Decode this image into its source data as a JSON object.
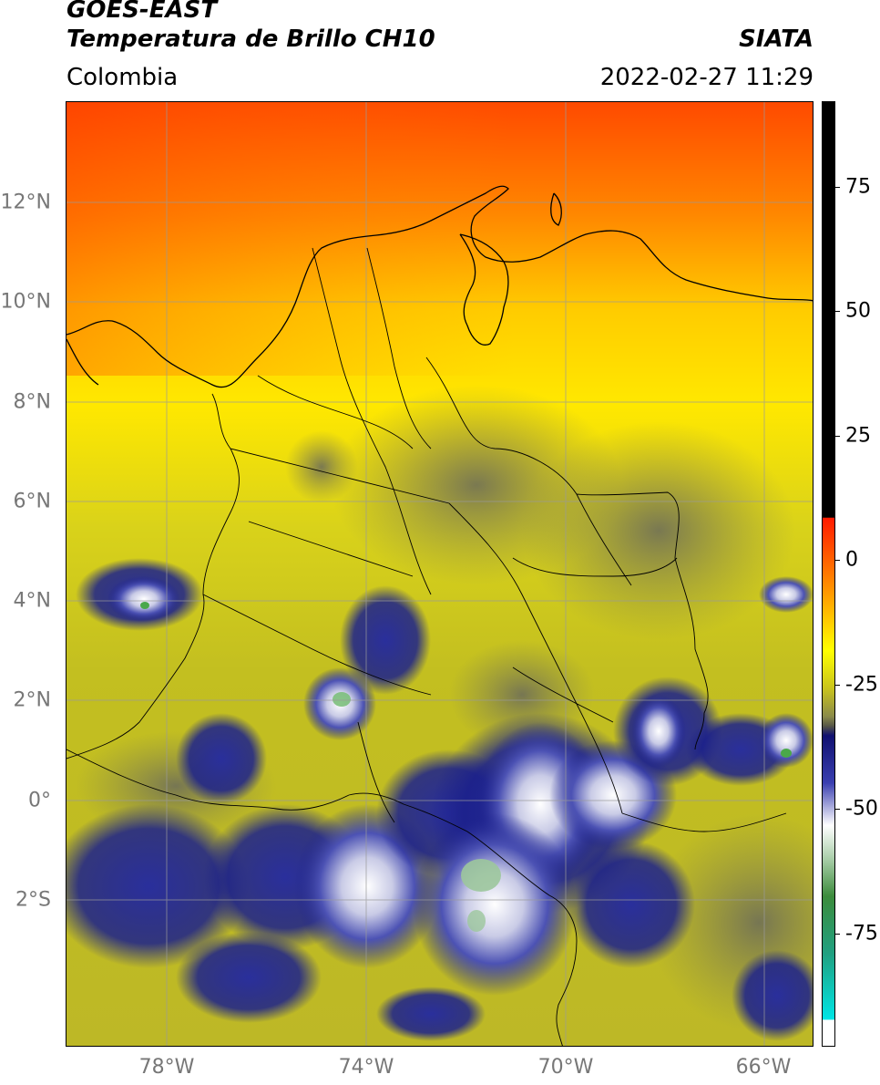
{
  "header": {
    "satellite": "GOES-EAST",
    "product": "Temperatura de Brillo CH10",
    "region": "Colombia",
    "source": "SIATA",
    "datetime": "2022-02-27 11:29"
  },
  "map": {
    "lat_labels": [
      "12°N",
      "10°N",
      "8°N",
      "6°N",
      "4°N",
      "2°N",
      "0°",
      "2°S"
    ],
    "lon_labels": [
      "78°W",
      "74°W",
      "70°W",
      "66°W"
    ],
    "gridlines": true,
    "palette": {
      "warm": "#ff4a00",
      "orange": "#ff9a00",
      "yellow": "#ffe800",
      "olive": "#c9c41c",
      "grey_cloud": "#6e6e58",
      "deep_blue": "#1a1f8c",
      "white": "#ffffff",
      "green": "#4aa84a",
      "cyan": "#19d4d0"
    }
  },
  "colorbar": {
    "ticks": [
      "75",
      "50",
      "25",
      "0",
      "-25",
      "-50",
      "-75"
    ],
    "colors": {
      "top": "#000000",
      "red": "#ff1a00",
      "orange": "#ff9a00",
      "yellow": "#ffff00",
      "olive": "#b8b41e",
      "grey": "#555548",
      "navy": "#101070",
      "blue": "#3a3fb0",
      "white": "#ffffff",
      "green": "#3c8c3c",
      "teal": "#20a080",
      "cyan": "#00e5e5"
    }
  }
}
